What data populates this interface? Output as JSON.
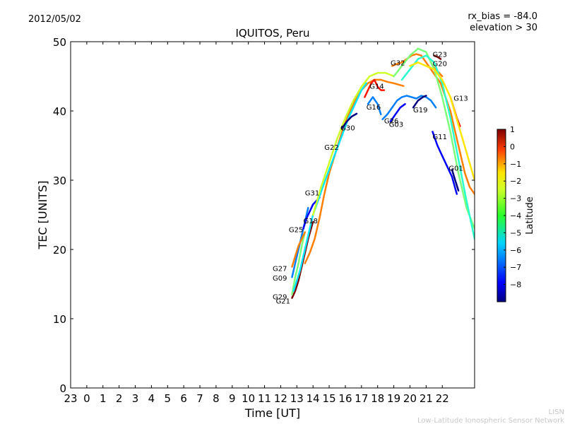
{
  "header": {
    "date": "2012/05/02",
    "rx_bias": "rx_bias = -84.0",
    "elevation": "elevation > 30"
  },
  "footer": {
    "line1": "LISN",
    "line2": "Low-Latitude Ionospheric Sensor Network"
  },
  "colors": {
    "colormap": [
      "#00007f",
      "#0000ff",
      "#007fff",
      "#00e5ff",
      "#29ffce",
      "#7dff7a",
      "#ceff29",
      "#ffe500",
      "#ff7f00",
      "#ff1400",
      "#7f0000"
    ]
  },
  "chart_data": {
    "type": "line",
    "title": "IQUITOS, Peru",
    "xlabel": "Time [UT]",
    "ylabel": "TEC [UNITS]",
    "xlim": [
      -1,
      24
    ],
    "ylim": [
      0,
      50
    ],
    "x_ticks": [
      {
        "v": -1,
        "label": "23"
      },
      {
        "v": 0,
        "label": "0"
      },
      {
        "v": 1,
        "label": "1"
      },
      {
        "v": 2,
        "label": "2"
      },
      {
        "v": 3,
        "label": "3"
      },
      {
        "v": 4,
        "label": "4"
      },
      {
        "v": 5,
        "label": "5"
      },
      {
        "v": 6,
        "label": "6"
      },
      {
        "v": 7,
        "label": "7"
      },
      {
        "v": 8,
        "label": "8"
      },
      {
        "v": 9,
        "label": "9"
      },
      {
        "v": 10,
        "label": "10"
      },
      {
        "v": 11,
        "label": "11"
      },
      {
        "v": 12,
        "label": "12"
      },
      {
        "v": 13,
        "label": "13"
      },
      {
        "v": 14,
        "label": "14"
      },
      {
        "v": 15,
        "label": "15"
      },
      {
        "v": 16,
        "label": "16"
      },
      {
        "v": 17,
        "label": "17"
      },
      {
        "v": 18,
        "label": "18"
      },
      {
        "v": 19,
        "label": "19"
      },
      {
        "v": 20,
        "label": "20"
      },
      {
        "v": 21,
        "label": "21"
      },
      {
        "v": 22,
        "label": "22"
      }
    ],
    "y_ticks": [
      0,
      10,
      20,
      30,
      40,
      50
    ],
    "grid": false,
    "colorbar": {
      "label": "Latitude",
      "min": -9,
      "max": 1,
      "ticks": [
        1,
        0,
        -1,
        -2,
        -3,
        -4,
        -5,
        -6,
        -7,
        -8
      ]
    },
    "series": [
      {
        "name": "G21",
        "lat": 0.5,
        "x": [
          12.7,
          12.9,
          13.1,
          13.3,
          13.5,
          13.7,
          14.0
        ],
        "y": [
          13,
          14,
          15.5,
          17.5,
          19.5,
          21.5,
          24
        ]
      },
      {
        "name": "G29",
        "lat": -4,
        "x": [
          12.7,
          12.9,
          13.1,
          13.3,
          13.5
        ],
        "y": [
          13.5,
          16,
          18,
          20.5,
          22.5
        ]
      },
      {
        "name": "G09",
        "lat": -7,
        "x": [
          12.7,
          12.9,
          13.1,
          13.3,
          13.5,
          13.7
        ],
        "y": [
          16,
          18,
          20,
          22,
          24,
          26
        ]
      },
      {
        "name": "G27",
        "lat": -1,
        "x": [
          12.7,
          12.9,
          13.1,
          13.3,
          13.5
        ],
        "y": [
          17.5,
          19,
          20.5,
          21.5,
          22.5
        ]
      },
      {
        "name": "G25",
        "lat": -8.5,
        "x": [
          13.4,
          13.6,
          13.8,
          14.0,
          14.2,
          14.4
        ],
        "y": [
          23,
          24.5,
          25.5,
          26.5,
          27,
          27.5
        ]
      },
      {
        "name": "G18",
        "lat": -1.5,
        "x": [
          13.5,
          13.8,
          14.1,
          14.4,
          14.7,
          15.0,
          15.4,
          15.8,
          16.2,
          16.6,
          17.0,
          17.4,
          17.8,
          18.2,
          18.6,
          19.0,
          19.3,
          19.6
        ],
        "y": [
          18,
          19.5,
          21.5,
          24.5,
          28,
          31,
          34,
          37,
          39.5,
          41.5,
          43,
          44,
          44.5,
          44.5,
          44.2,
          44,
          43.8,
          43.6
        ]
      },
      {
        "name": "G31",
        "lat": -6.5,
        "x": [
          12.8,
          13.2,
          13.6,
          14.0,
          14.3,
          14.6,
          15.0,
          15.4,
          15.8,
          16.2,
          16.6,
          17.0,
          17.3
        ],
        "y": [
          14,
          17,
          21,
          25,
          27,
          29,
          31.5,
          34,
          36.5,
          39,
          41,
          43,
          44
        ]
      },
      {
        "name": "G22",
        "lat": -3.5,
        "x": [
          14.0,
          14.5,
          15.0,
          15.5,
          16.0,
          16.5,
          17.0,
          17.5,
          18.0,
          18.5,
          19.0
        ],
        "y": [
          25,
          29,
          32.5,
          36,
          39,
          41.5,
          43.5,
          45,
          45.5,
          45.5,
          45
        ]
      },
      {
        "name": "G30",
        "lat": -8.8,
        "x": [
          15.8,
          16.1,
          16.4,
          16.7
        ],
        "y": [
          37.5,
          38.5,
          39.2,
          39.6
        ]
      },
      {
        "name": "G16",
        "lat": -7.5,
        "x": [
          17.4,
          17.7,
          18.0,
          18.2
        ],
        "y": [
          41,
          42,
          41,
          39.5
        ]
      },
      {
        "name": "G14",
        "lat": 0.4,
        "x": [
          17.2,
          17.4,
          17.6,
          17.8,
          18.0,
          18.2,
          18.4
        ],
        "y": [
          42,
          43,
          44,
          44.5,
          43.5,
          43,
          43
        ]
      },
      {
        "name": "G26",
        "lat": -7,
        "x": [
          18.3,
          18.6,
          18.9,
          19.2,
          19.5,
          19.8,
          20.1,
          20.4,
          20.7,
          21.0,
          21.3,
          21.6
        ],
        "y": [
          38.8,
          39.5,
          40.5,
          41.5,
          42,
          42.2,
          42,
          41.8,
          42.2,
          42,
          41.5,
          40.5
        ]
      },
      {
        "name": "G03",
        "lat": -8.5,
        "x": [
          18.8,
          19.1,
          19.4,
          19.7
        ],
        "y": [
          38.5,
          39.5,
          40.5,
          41
        ]
      },
      {
        "name": "G32",
        "lat": -1.2,
        "x": [
          18.9,
          19.2,
          19.5,
          19.8,
          20.1,
          20.4,
          20.7,
          21.0,
          21.3,
          21.6,
          21.9,
          22.2,
          22.5,
          22.8,
          23.1,
          23.4,
          23.7,
          24.0
        ],
        "y": [
          46.5,
          46.8,
          47,
          47.5,
          48,
          48.2,
          48,
          47,
          46,
          45,
          44,
          42,
          40,
          37,
          34,
          31,
          29,
          28
        ]
      },
      {
        "name": "G19",
        "lat": -8.8,
        "x": [
          20.2,
          20.5,
          20.8,
          21.0
        ],
        "y": [
          40.5,
          41.5,
          42,
          42.2
        ]
      },
      {
        "name": "G23",
        "lat": 0.6,
        "x": [
          21.5,
          21.7,
          21.9
        ],
        "y": [
          48,
          47.8,
          47.5
        ]
      },
      {
        "name": "G20",
        "lat": -1,
        "x": [
          21.4,
          21.6,
          21.8,
          22.0
        ],
        "y": [
          46.5,
          46,
          45.5,
          45
        ]
      },
      {
        "name": "G13",
        "lat": 0.3,
        "x": [
          22.5,
          22.7,
          22.9,
          23.1
        ],
        "y": [
          42,
          40.5,
          39,
          37.8
        ]
      },
      {
        "name": "G11",
        "lat": -8.3,
        "x": [
          21.4,
          21.7,
          22.0,
          22.3,
          22.6,
          22.9
        ],
        "y": [
          37,
          35,
          33.5,
          32,
          30.5,
          28
        ]
      },
      {
        "name": "G01",
        "lat": -8.6,
        "x": [
          22.6,
          22.8,
          23.0
        ],
        "y": [
          31.5,
          30,
          28.5
        ]
      },
      {
        "name": "",
        "lat": -3.8,
        "x": [
          19.0,
          19.5,
          20.0,
          20.5,
          21.0,
          21.5,
          22.0,
          22.5,
          23.0,
          23.5,
          24.0
        ],
        "y": [
          45,
          46.5,
          48,
          49,
          48.5,
          46,
          42,
          37,
          31,
          26,
          23
        ]
      },
      {
        "name": "",
        "lat": -4.8,
        "x": [
          19.5,
          20.0,
          20.5,
          21.0,
          21.5,
          22.0,
          22.5,
          23.0,
          23.5,
          24.0
        ],
        "y": [
          44.5,
          46,
          47.5,
          48,
          47,
          44,
          39,
          33,
          27,
          21.5
        ]
      },
      {
        "name": "",
        "lat": -2.5,
        "x": [
          20.0,
          20.5,
          21.0,
          21.5,
          22.0,
          22.5,
          23.0,
          23.5,
          24.0
        ],
        "y": [
          46.5,
          47,
          46.5,
          46,
          44.5,
          42,
          38,
          34,
          30
        ]
      }
    ],
    "annotations": [
      {
        "text": "G23",
        "x": 21.4,
        "y": 47.8
      },
      {
        "text": "G20",
        "x": 21.4,
        "y": 46.5
      },
      {
        "text": "G32",
        "x": 18.8,
        "y": 46.6
      },
      {
        "text": "G13",
        "x": 22.7,
        "y": 41.5
      },
      {
        "text": "G14",
        "x": 17.5,
        "y": 43.2
      },
      {
        "text": "G16",
        "x": 17.3,
        "y": 40.2
      },
      {
        "text": "G19",
        "x": 20.2,
        "y": 39.8
      },
      {
        "text": "G26",
        "x": 18.4,
        "y": 38.2
      },
      {
        "text": "G03",
        "x": 18.7,
        "y": 37.7
      },
      {
        "text": "G30",
        "x": 15.7,
        "y": 37.2
      },
      {
        "text": "G11",
        "x": 21.4,
        "y": 35.9
      },
      {
        "text": "G22",
        "x": 14.7,
        "y": 34.4
      },
      {
        "text": "G01",
        "x": 22.4,
        "y": 31.4
      },
      {
        "text": "G31",
        "x": 13.5,
        "y": 27.8
      },
      {
        "text": "G25",
        "x": 12.5,
        "y": 22.5
      },
      {
        "text": "G18",
        "x": 13.4,
        "y": 23.8
      },
      {
        "text": "G27",
        "x": 11.5,
        "y": 16.9
      },
      {
        "text": "G09",
        "x": 11.5,
        "y": 15.5
      },
      {
        "text": "G29",
        "x": 11.5,
        "y": 12.8
      },
      {
        "text": "G21",
        "x": 11.7,
        "y": 12.2
      }
    ]
  }
}
